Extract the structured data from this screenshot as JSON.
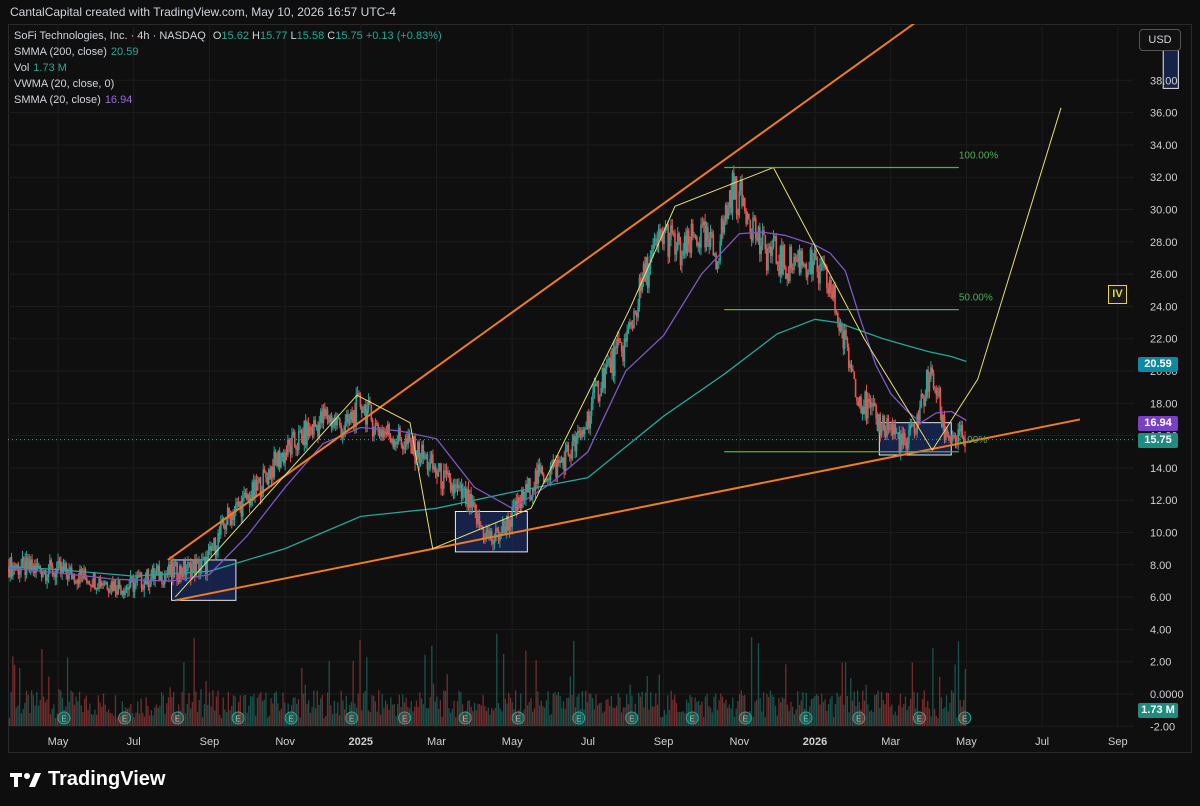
{
  "header": {
    "attribution": "CantalCapital created with TradingView.com, May 10, 2026 16:57 UTC-4"
  },
  "legend": {
    "symbol_line": {
      "name": "SoFi Technologies, Inc. · 4h · NASDAQ",
      "o_label": "O",
      "o": "15.62",
      "h_label": "H",
      "h": "15.77",
      "l_label": "L",
      "l": "15.58",
      "c_label": "C",
      "c": "15.75",
      "change": "+0.13 (+0.83%)"
    },
    "indicators": [
      {
        "label": "SMMA (200, close)",
        "value": "20.59",
        "color": "#26a69a"
      },
      {
        "label": "Vol",
        "value": "1.73 M",
        "color": "#26a69a"
      },
      {
        "label": "VWMA (20, close, 0)",
        "value": "",
        "color": "#d1d4dc"
      },
      {
        "label": "SMMA (20, close)",
        "value": "16.94",
        "color": "#9c6ade"
      }
    ]
  },
  "toolbar": {
    "currency": "USD"
  },
  "badges": {
    "smma200": {
      "text": "20.59",
      "color": "#0b8ba3"
    },
    "smma20": {
      "text": "16.94",
      "color": "#7b3fc6"
    },
    "last_price": {
      "text": "15.75",
      "color": "#1f8c80"
    },
    "volume": {
      "text": "1.73 M",
      "color": "#1f8c80"
    }
  },
  "annotation_iv": "IV",
  "brand": {
    "name": "TradingView"
  },
  "colors": {
    "bull": "#26a69a",
    "bear": "#ef5350",
    "smma200": "#26a69a",
    "smma20": "#7e57c2",
    "trendline": "#f07b20",
    "zigzag": "#e8e070",
    "fib": "#4caf50",
    "zone": "#1a2a5c"
  },
  "chart_data": {
    "type": "line",
    "title": "SoFi Technologies, Inc. · 4h · NASDAQ",
    "ylim": [
      -2,
      41
    ],
    "y_ticks": [
      "-2.00",
      "0.0000",
      "2.00",
      "4.00",
      "6.00",
      "8.00",
      "10.00",
      "12.00",
      "14.00",
      "16.00",
      "18.00",
      "20.00",
      "22.00",
      "24.00",
      "26.00",
      "28.00",
      "30.00",
      "32.00",
      "34.00",
      "36.00",
      "38.00"
    ],
    "x_ticks": [
      {
        "label": "May",
        "t": 0.0
      },
      {
        "label": "Jul",
        "t": 2.0
      },
      {
        "label": "Sep",
        "t": 4.0
      },
      {
        "label": "Nov",
        "t": 6.0
      },
      {
        "label": "2025",
        "t": 8.0
      },
      {
        "label": "Mar",
        "t": 10.0
      },
      {
        "label": "May",
        "t": 12.0
      },
      {
        "label": "Jul",
        "t": 14.0
      },
      {
        "label": "Sep",
        "t": 16.0
      },
      {
        "label": "Nov",
        "t": 18.0
      },
      {
        "label": "2026",
        "t": 20.0
      },
      {
        "label": "Mar",
        "t": 22.0
      },
      {
        "label": "May",
        "t": 24.0
      },
      {
        "label": "Jul",
        "t": 26.0
      },
      {
        "label": "Sep",
        "t": 28.0
      }
    ],
    "series": [
      {
        "name": "SoFi Technologies, Inc.",
        "kind": "price",
        "x": [
          -1.3,
          0,
          1,
          1.8,
          2.5,
          3.2,
          3.9,
          4.5,
          5.2,
          5.8,
          6.5,
          7.1,
          7.6,
          8.0,
          8.4,
          9.0,
          9.6,
          10.2,
          10.8,
          11.2,
          11.5,
          12.0,
          12.6,
          13.2,
          13.8,
          14.4,
          15.0,
          15.5,
          16.0,
          16.5,
          16.9,
          17.4,
          17.8,
          18.2,
          18.6,
          18.9,
          19.2,
          19.6,
          20.0,
          20.4,
          20.8,
          21.2,
          21.6,
          22.0,
          22.4,
          22.7,
          23.0,
          23.2,
          23.4,
          23.6,
          23.8,
          24.0
        ],
        "y": [
          7.9,
          7.6,
          7.1,
          6.6,
          7.3,
          7.6,
          8.0,
          11.0,
          12.5,
          14.5,
          16.0,
          17.2,
          16.4,
          18.1,
          16.5,
          15.8,
          14.8,
          13.2,
          12.0,
          10.2,
          9.5,
          11.0,
          13.3,
          14.1,
          15.8,
          19.8,
          21.7,
          25.9,
          28.6,
          27.1,
          28.5,
          27.2,
          31.2,
          30.2,
          27.5,
          27.3,
          26.5,
          27.0,
          26.3,
          25.2,
          21.5,
          18.3,
          16.9,
          16.5,
          15.2,
          17.0,
          19.6,
          19.0,
          16.4,
          16.0,
          15.8,
          15.75
        ]
      },
      {
        "name": "SMMA (200, close)",
        "kind": "smma200",
        "x": [
          -1.3,
          0,
          2,
          4,
          6,
          8,
          10,
          12,
          14,
          16,
          17.6,
          19,
          20,
          20.6,
          21.2,
          21.8,
          22.4,
          23,
          23.6,
          24
        ],
        "y": [
          7.9,
          7.7,
          7.3,
          7.6,
          9.0,
          11.0,
          11.5,
          12.5,
          13.4,
          17.2,
          19.8,
          22.3,
          23.2,
          23.0,
          22.5,
          22.0,
          21.6,
          21.2,
          20.9,
          20.59
        ]
      },
      {
        "name": "SMMA (20, close)",
        "kind": "smma20",
        "x": [
          -1.3,
          0,
          1.5,
          3,
          4,
          5,
          6,
          7,
          8,
          9,
          10,
          11,
          12,
          13,
          14,
          15,
          16,
          17,
          18,
          18.6,
          19.2,
          20,
          20.4,
          20.8,
          21.2,
          21.6,
          22,
          22.4,
          22.8,
          23.2,
          23.6,
          24
        ],
        "y": [
          7.8,
          7.5,
          7.1,
          7.0,
          7.4,
          9.8,
          12.8,
          15.5,
          16.5,
          16.3,
          15.8,
          12.8,
          11.5,
          13.0,
          15.0,
          20.0,
          22.2,
          26.0,
          28.5,
          28.6,
          28.4,
          27.8,
          27.3,
          26.2,
          23.2,
          20.4,
          18.6,
          17.6,
          16.8,
          17.4,
          17.5,
          16.94
        ]
      }
    ],
    "trendlines": [
      {
        "name": "upper",
        "x": [
          2.9,
          23.5
        ],
        "y": [
          8.3,
          43.0
        ]
      },
      {
        "name": "lower",
        "x": [
          3.1,
          27.0
        ],
        "y": [
          5.8,
          17.0
        ]
      }
    ],
    "zigzag": {
      "x": [
        3.1,
        7.9,
        9.3,
        9.9,
        12.5,
        15.1,
        16.3,
        18.9,
        21.3,
        23.1,
        24.3,
        26.5
      ],
      "y": [
        6.0,
        18.5,
        16.8,
        9.0,
        11.5,
        23.8,
        30.2,
        32.6,
        22.0,
        15.1,
        19.5,
        36.3
      ]
    },
    "fib": {
      "x_start": 17.6,
      "x_end": 23.8,
      "levels": [
        {
          "label": "100.00%",
          "value": 32.6
        },
        {
          "label": "50.00%",
          "value": 23.8
        },
        {
          "label": "0.00%",
          "value": 15.0
        }
      ]
    },
    "zones": [
      {
        "x0": 3.0,
        "x1": 4.7,
        "y0": 5.8,
        "y1": 8.3
      },
      {
        "x0": 10.5,
        "x1": 12.4,
        "y0": 8.8,
        "y1": 11.3
      },
      {
        "x0": 21.7,
        "x1": 23.6,
        "y0": 14.8,
        "y1": 16.8
      },
      {
        "x0": 29.2,
        "x1": 29.6,
        "y0": 37.5,
        "y1": 41.0
      }
    ]
  }
}
